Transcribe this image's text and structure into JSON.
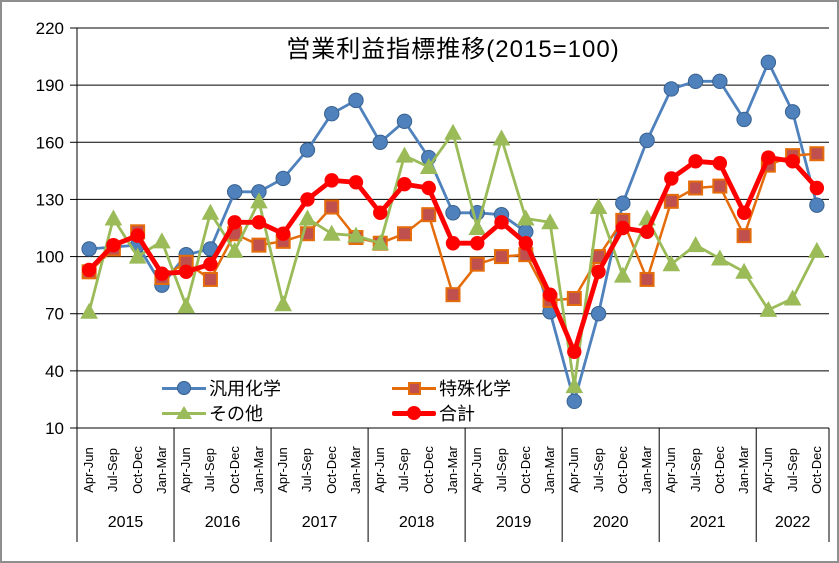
{
  "chart_data": {
    "type": "line",
    "title": "営業利益指標推移(2015=100)",
    "xlabel": "",
    "ylabel": "",
    "ylim": [
      10,
      220
    ],
    "y_ticks": [
      10,
      40,
      70,
      100,
      130,
      160,
      190,
      220
    ],
    "grid": true,
    "legend_position": "bottom-inside",
    "years": [
      {
        "label": "2015",
        "quarters": [
          "Apr-Jun",
          "Jul-Sep",
          "Oct-Dec",
          "Jan-Mar"
        ]
      },
      {
        "label": "2016",
        "quarters": [
          "Apr-Jun",
          "Jul-Sep",
          "Oct-Dec",
          "Jan-Mar"
        ]
      },
      {
        "label": "2017",
        "quarters": [
          "Apr-Jun",
          "Jul-Sep",
          "Oct-Dec",
          "Jan-Mar"
        ]
      },
      {
        "label": "2018",
        "quarters": [
          "Apr-Jun",
          "Jul-Sep",
          "Oct-Dec",
          "Jan-Mar"
        ]
      },
      {
        "label": "2019",
        "quarters": [
          "Apr-Jun",
          "Jul-Sep",
          "Oct-Dec",
          "Jan-Mar"
        ]
      },
      {
        "label": "2020",
        "quarters": [
          "Apr-Jun",
          "Jul-Sep",
          "Oct-Dec",
          "Jan-Mar"
        ]
      },
      {
        "label": "2021",
        "quarters": [
          "Apr-Jun",
          "Jul-Sep",
          "Oct-Dec",
          "Jan-Mar"
        ]
      },
      {
        "label": "2022",
        "quarters": [
          "Apr-Jun",
          "Jul-Sep",
          "Oct-Dec"
        ]
      }
    ],
    "series": [
      {
        "name": "汎用化学",
        "key": "hanyo-kagaku",
        "marker": "circle",
        "color": "#4F81BD",
        "marker_fill": "#4F81BD",
        "line_width": 2.8,
        "values": [
          104,
          105,
          106,
          85,
          101,
          104,
          134,
          134,
          141,
          156,
          175,
          182,
          160,
          171,
          152,
          123,
          123,
          122,
          113,
          71,
          24,
          70,
          128,
          161,
          188,
          192,
          192,
          172,
          202,
          176,
          127
        ]
      },
      {
        "name": "特殊化学",
        "key": "tokushu-kagaku",
        "marker": "square",
        "color": "#E46C0A",
        "marker_fill": "#C0504D",
        "line_width": 2.5,
        "values": [
          92,
          104,
          113,
          89,
          97,
          88,
          112,
          106,
          108,
          112,
          126,
          110,
          107,
          112,
          122,
          80,
          96,
          100,
          101,
          77,
          78,
          100,
          119,
          88,
          129,
          136,
          137,
          111,
          148,
          153,
          154
        ]
      },
      {
        "name": "その他",
        "key": "sonota",
        "marker": "triangle",
        "color": "#9BBB59",
        "marker_fill": "#9BBB59",
        "line_width": 2.8,
        "values": [
          71,
          120,
          100,
          108,
          74,
          123,
          103,
          129,
          75,
          120,
          112,
          111,
          107,
          153,
          147,
          165,
          115,
          162,
          120,
          118,
          32,
          126,
          90,
          120,
          96,
          106,
          99,
          92,
          72,
          78,
          103
        ]
      },
      {
        "name": "合計",
        "key": "gokei",
        "marker": "circle",
        "color": "#FF0000",
        "marker_fill": "#FF0000",
        "line_width": 4.8,
        "values": [
          93,
          106,
          111,
          91,
          92,
          96,
          118,
          118,
          112,
          130,
          140,
          139,
          123,
          138,
          136,
          107,
          107,
          118,
          107,
          80,
          50,
          92,
          115,
          113,
          141,
          150,
          149,
          123,
          152,
          150,
          136
        ]
      }
    ],
    "axis_color": "#000000",
    "grid_color": "#000000"
  }
}
